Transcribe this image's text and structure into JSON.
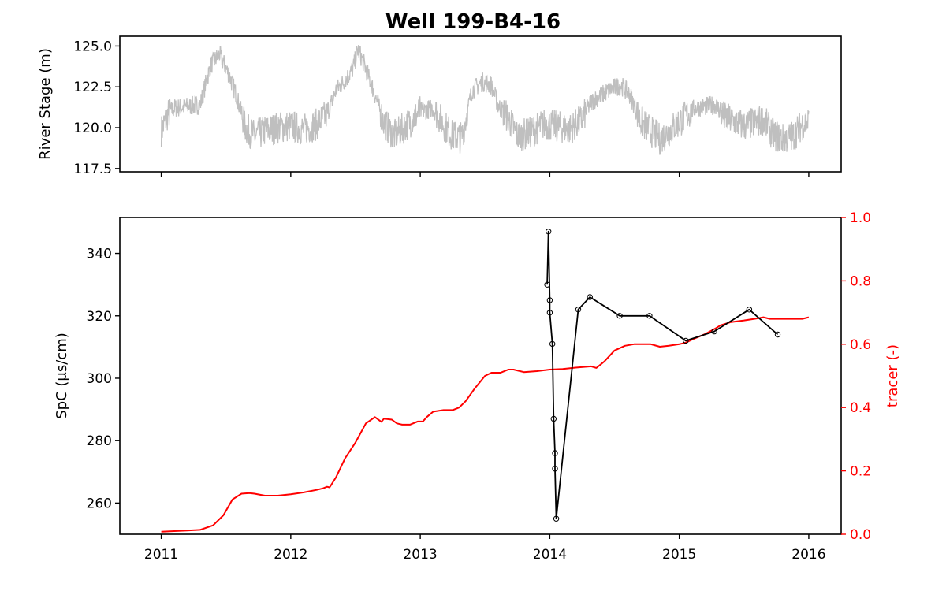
{
  "title": "Well 199-B4-16",
  "colors": {
    "river": "#bfbfbf",
    "spc": "#000000",
    "tracer": "#ff0000",
    "axes": "#000000"
  },
  "chart_data": [
    {
      "type": "line",
      "ylabel": "River Stage (m)",
      "xlim": [
        2010.68,
        2016.25
      ],
      "ylim": [
        117.3,
        125.6
      ],
      "xticks": [
        2011,
        2012,
        2013,
        2014,
        2015,
        2016
      ],
      "yticks": [
        117.5,
        120.0,
        122.5,
        125.0
      ],
      "ytick_labels": [
        "117.5",
        "120.0",
        "122.5",
        "125.0"
      ],
      "xtick_labels_shown": false,
      "series": [
        {
          "color": "#bfbfbf",
          "style": "dense noisy daily signal",
          "x": [
            2011.0,
            2011.05,
            2011.1,
            2011.2,
            2011.3,
            2011.38,
            2011.45,
            2011.52,
            2011.58,
            2011.65,
            2011.72,
            2011.8,
            2011.9,
            2012.0,
            2012.1,
            2012.2,
            2012.28,
            2012.35,
            2012.42,
            2012.48,
            2012.52,
            2012.58,
            2012.65,
            2012.72,
            2012.8,
            2012.9,
            2013.0,
            2013.1,
            2013.18,
            2013.25,
            2013.32,
            2013.4,
            2013.48,
            2013.55,
            2013.6,
            2013.68,
            2013.75,
            2013.85,
            2013.95,
            2014.05,
            2014.15,
            2014.25,
            2014.32,
            2014.4,
            2014.48,
            2014.55,
            2014.62,
            2014.7,
            2014.78,
            2014.85,
            2014.95,
            2015.05,
            2015.12,
            2015.2,
            2015.28,
            2015.35,
            2015.42,
            2015.5,
            2015.58,
            2015.65,
            2015.72,
            2015.8,
            2015.88,
            2015.95,
            2016.0
          ],
          "y": [
            119.8,
            120.8,
            121.2,
            121.3,
            121.4,
            123.8,
            124.5,
            123.3,
            122.0,
            120.0,
            119.5,
            119.8,
            120.0,
            120.1,
            119.9,
            120.2,
            120.8,
            122.3,
            122.9,
            123.6,
            124.8,
            123.6,
            122.0,
            120.3,
            119.5,
            120.2,
            121.0,
            121.2,
            120.2,
            119.5,
            119.4,
            122.3,
            122.8,
            122.6,
            121.4,
            120.6,
            119.5,
            119.7,
            120.2,
            120.1,
            119.9,
            120.5,
            121.6,
            122.0,
            122.4,
            122.6,
            122.0,
            120.4,
            119.8,
            119.3,
            120.0,
            120.7,
            121.2,
            121.3,
            121.4,
            120.6,
            120.4,
            120.1,
            120.3,
            120.5,
            119.6,
            119.3,
            119.5,
            120.2,
            120.4
          ]
        }
      ]
    },
    {
      "type": "line",
      "ylabel": "SpC (μs/cm)",
      "ylabel_right": "tracer (-)",
      "xlim": [
        2010.68,
        2016.25
      ],
      "ylim": [
        250,
        351.5
      ],
      "ylim_right": [
        0.0,
        1.0
      ],
      "xticks": [
        2011,
        2012,
        2013,
        2014,
        2015,
        2016
      ],
      "xtick_labels": [
        "2011",
        "2012",
        "2013",
        "2014",
        "2015",
        "2016"
      ],
      "yticks": [
        260,
        280,
        300,
        320,
        340
      ],
      "ytick_labels": [
        "260",
        "280",
        "300",
        "320",
        "340"
      ],
      "yticks_right": [
        0.0,
        0.2,
        0.4,
        0.6,
        0.8,
        1.0
      ],
      "ytick_labels_right": [
        "0.0",
        "0.2",
        "0.4",
        "0.6",
        "0.8",
        "1.0"
      ],
      "series": [
        {
          "axis": "left",
          "color": "#000000",
          "marker": "open-circle",
          "x": [
            2013.98,
            2013.99,
            2014.0,
            2014.0,
            2014.02,
            2014.03,
            2014.04,
            2014.04,
            2014.05,
            2014.22,
            2014.31,
            2014.54,
            2014.77,
            2015.05,
            2015.27,
            2015.54,
            2015.76
          ],
          "y": [
            330,
            347,
            325,
            321,
            311,
            287,
            276,
            271,
            255,
            322,
            326,
            320,
            320,
            312,
            315,
            322,
            314
          ]
        },
        {
          "axis": "right",
          "color": "#ff0000",
          "x": [
            2011.0,
            2011.1,
            2011.2,
            2011.3,
            2011.4,
            2011.48,
            2011.55,
            2011.62,
            2011.68,
            2011.72,
            2011.8,
            2011.9,
            2012.0,
            2012.1,
            2012.2,
            2012.25,
            2012.28,
            2012.3,
            2012.35,
            2012.42,
            2012.5,
            2012.58,
            2012.65,
            2012.7,
            2012.72,
            2012.78,
            2012.82,
            2012.86,
            2012.92,
            2012.98,
            2013.02,
            2013.05,
            2013.1,
            2013.18,
            2013.25,
            2013.3,
            2013.35,
            2013.42,
            2013.5,
            2013.55,
            2013.62,
            2013.68,
            2013.72,
            2013.8,
            2013.9,
            2014.0,
            2014.1,
            2014.2,
            2014.32,
            2014.36,
            2014.42,
            2014.5,
            2014.58,
            2014.65,
            2014.7,
            2014.78,
            2014.85,
            2014.92,
            2015.0,
            2015.05,
            2015.1,
            2015.2,
            2015.28,
            2015.32,
            2015.4,
            2015.5,
            2015.58,
            2015.65,
            2015.7,
            2015.75,
            2015.85,
            2015.95,
            2016.0
          ],
          "y": [
            0.008,
            0.01,
            0.012,
            0.014,
            0.028,
            0.06,
            0.11,
            0.128,
            0.13,
            0.128,
            0.122,
            0.122,
            0.126,
            0.132,
            0.14,
            0.145,
            0.15,
            0.148,
            0.18,
            0.24,
            0.29,
            0.35,
            0.37,
            0.355,
            0.365,
            0.362,
            0.35,
            0.346,
            0.346,
            0.356,
            0.356,
            0.37,
            0.387,
            0.392,
            0.392,
            0.4,
            0.42,
            0.46,
            0.5,
            0.51,
            0.51,
            0.52,
            0.52,
            0.512,
            0.515,
            0.52,
            0.522,
            0.526,
            0.53,
            0.525,
            0.545,
            0.58,
            0.595,
            0.6,
            0.6,
            0.6,
            0.592,
            0.595,
            0.6,
            0.605,
            0.615,
            0.632,
            0.65,
            0.66,
            0.67,
            0.675,
            0.68,
            0.685,
            0.68,
            0.68,
            0.68,
            0.68,
            0.685
          ]
        }
      ]
    }
  ]
}
